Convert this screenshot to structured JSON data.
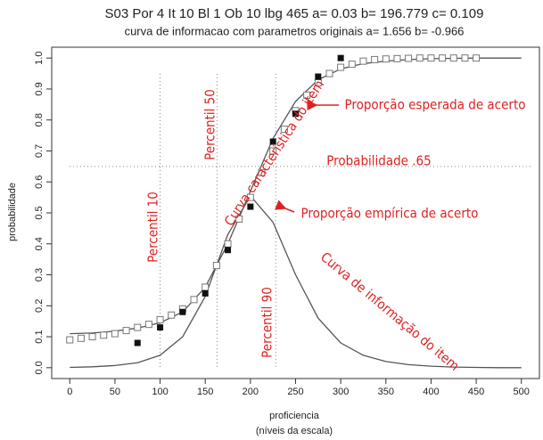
{
  "chart_data": {
    "type": "line",
    "title": "S03 Por 4 It 10  Bl 1 Ob 10 lbg 465  a= 0.03    b= 196.779  c= 0.109",
    "subtitle": "curva de informacao com parametros originais  a= 1.656    b= -0.966",
    "xlabel": "proficiencia",
    "xlabel2": "(níveis da escala)",
    "ylabel": "probabilidade",
    "xlim": [
      -20,
      520
    ],
    "ylim": [
      -0.035,
      1.035
    ],
    "xticks": [
      0,
      50,
      100,
      150,
      200,
      250,
      300,
      350,
      400,
      450,
      500
    ],
    "yticks": [
      {
        "value": 0,
        "label": "0.0"
      },
      0.1,
      0.2,
      0.3,
      0.4,
      0.5,
      0.6,
      0.7,
      0.8,
      0.9,
      {
        "value": 1,
        "label": "1.0"
      }
    ],
    "series": [
      {
        "style": "line",
        "color": "#555",
        "x": [
          0,
          25,
          50,
          75,
          100,
          125,
          150,
          175,
          200,
          225,
          250,
          275,
          300,
          325,
          350,
          375,
          400,
          425,
          450,
          475,
          500
        ],
        "values": [
          0.11,
          0.112,
          0.118,
          0.128,
          0.145,
          0.18,
          0.26,
          0.4,
          0.57,
          0.74,
          0.86,
          0.93,
          0.965,
          0.982,
          0.99,
          0.995,
          0.998,
          0.999,
          1,
          1,
          1
        ]
      },
      {
        "style": "line",
        "color": "#555",
        "x": [
          0,
          25,
          50,
          75,
          100,
          125,
          150,
          175,
          200,
          225,
          250,
          275,
          300,
          325,
          350,
          375,
          400,
          425,
          450,
          475,
          500
        ],
        "values": [
          0.001,
          0.003,
          0.007,
          0.016,
          0.04,
          0.1,
          0.23,
          0.43,
          0.555,
          0.47,
          0.3,
          0.16,
          0.08,
          0.04,
          0.02,
          0.01,
          0.005,
          0.002,
          0.001,
          0,
          0
        ]
      },
      {
        "style": "open-square",
        "color": "#777",
        "x": [
          0,
          12.5,
          25,
          37.5,
          50,
          62.5,
          75,
          87.5,
          100,
          112.5,
          125,
          137.5,
          150,
          162.5,
          175,
          187.5,
          200,
          212.5,
          225,
          237.5,
          250,
          262.5,
          275,
          287.5,
          300,
          312.5,
          325,
          337.5,
          350,
          362.5,
          375,
          387.5,
          400,
          412.5,
          425,
          437.5,
          450
        ],
        "values": [
          0.09,
          0.095,
          0.1,
          0.105,
          0.11,
          0.12,
          0.13,
          0.14,
          0.155,
          0.17,
          0.19,
          0.22,
          0.26,
          0.33,
          0.4,
          0.48,
          0.55,
          0.63,
          0.7,
          0.77,
          0.83,
          0.88,
          0.92,
          0.95,
          0.97,
          0.98,
          0.99,
          0.995,
          0.997,
          0.998,
          0.999,
          1,
          1,
          1,
          1,
          1,
          1
        ]
      },
      {
        "style": "filled-square",
        "color": "#111",
        "x": [
          75,
          100,
          125,
          150,
          175,
          200,
          225,
          250,
          275,
          300
        ],
        "values": [
          0.08,
          0.13,
          0.18,
          0.24,
          0.38,
          0.52,
          0.73,
          0.82,
          0.94,
          1.0
        ]
      }
    ],
    "vlines": [
      100,
      163,
      228
    ],
    "hlines": [
      0.65
    ],
    "annotations": [
      "Percentil 10",
      "Percentil 50",
      "Percentil 90",
      "Probabilidade .65",
      "Curva característica do item",
      "Proporção esperada de acerto",
      "Proporção empírica de acerto",
      "Curva de informação do item"
    ]
  }
}
